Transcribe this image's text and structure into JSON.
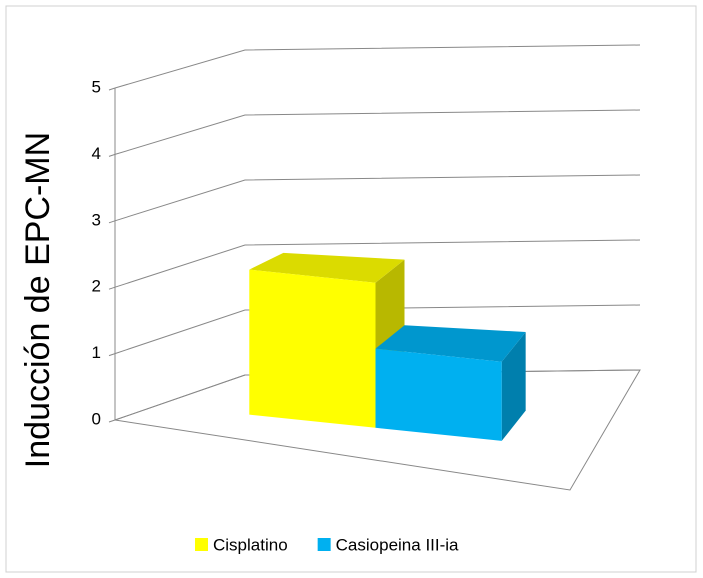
{
  "chart_data": {
    "type": "bar3d",
    "y_label": "Inducción de EPC-MN",
    "categories": [
      null
    ],
    "series": [
      {
        "name": "Cisplatino",
        "color": "#ffff00",
        "values": [
          2.2
        ]
      },
      {
        "name": "Casiopeina III-ia",
        "color": "#00b0f0",
        "values": [
          1.2
        ]
      }
    ],
    "ylim": [
      0,
      5
    ],
    "yticks": [
      0,
      1,
      2,
      3,
      4,
      5
    ],
    "grid": true,
    "legend": "bottom"
  }
}
